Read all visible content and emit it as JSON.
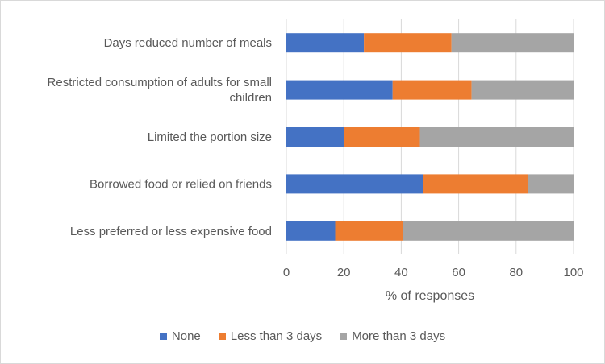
{
  "chart_data": {
    "type": "bar",
    "orientation": "horizontal",
    "stacked": true,
    "categories": [
      "Days reduced number of meals",
      "Restricted consumption of adults for small children",
      "Limited the portion size",
      "Borrowed food or relied on friends",
      "Less preferred or less expensive food"
    ],
    "series": [
      {
        "name": "None",
        "color": "#4472C4",
        "values": [
          27,
          37,
          20,
          47.5,
          17
        ]
      },
      {
        "name": "Less than 3 days",
        "color": "#ED7D31",
        "values": [
          30.5,
          27.5,
          26.5,
          36.5,
          23.5
        ]
      },
      {
        "name": "More than 3 days",
        "color": "#A5A5A5",
        "values": [
          42.5,
          35.5,
          53.5,
          16,
          59.5
        ]
      }
    ],
    "xlim": [
      0,
      100
    ],
    "xticks": [
      "0",
      "20",
      "40",
      "60",
      "80",
      "100"
    ],
    "xlabel": "% of responses",
    "grid": true,
    "legend_position": "bottom"
  }
}
